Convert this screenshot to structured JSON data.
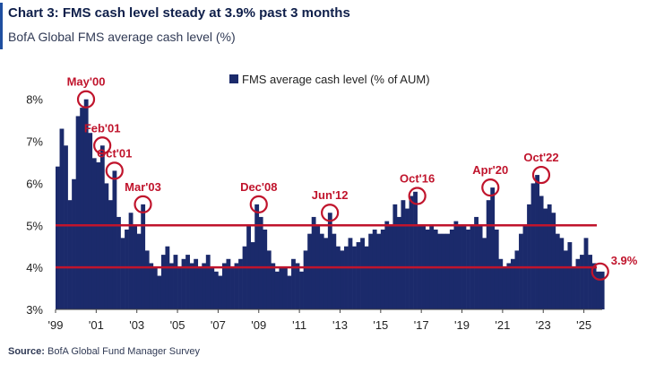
{
  "header": {
    "title": "Chart 3: FMS cash level steady at 3.9% past 3 months",
    "subtitle": "BofA Global FMS average cash level (%)"
  },
  "footer": {
    "source_label": "Source:",
    "source_text": "BofA Global Fund Manager Survey"
  },
  "colors": {
    "bars": "#1b2a6b",
    "threshold_lines": "#c0142c",
    "annotations": "#c0142c",
    "accent": "#1f4fa0"
  },
  "chart_data": {
    "type": "bar",
    "legend": {
      "label": "FMS average cash level (% of AUM)",
      "placement": "top-center"
    },
    "ylim": [
      3,
      8.4
    ],
    "y_ticks": [
      3,
      4,
      5,
      6,
      7,
      8
    ],
    "y_tick_labels": [
      "3%",
      "4%",
      "5%",
      "6%",
      "7%",
      "8%"
    ],
    "x_range": [
      1999.0,
      2025.8
    ],
    "x_tick_labels": [
      "'99",
      "'01",
      "'03",
      "'05",
      "'07",
      "'09",
      "'11",
      "'13",
      "'15",
      "'17",
      "'19",
      "'21",
      "'23",
      "'25"
    ],
    "x_tick_years": [
      1999,
      2001,
      2003,
      2005,
      2007,
      2009,
      2011,
      2013,
      2015,
      2017,
      2019,
      2021,
      2023,
      2025
    ],
    "threshold_lines": [
      5.0,
      4.0
    ],
    "grid": false,
    "series": [
      {
        "name": "FMS average cash level (% of AUM)",
        "points": [
          [
            1999.0,
            6.4
          ],
          [
            1999.2,
            7.3
          ],
          [
            1999.4,
            6.9
          ],
          [
            1999.6,
            5.6
          ],
          [
            1999.8,
            6.1
          ],
          [
            2000.0,
            7.6
          ],
          [
            2000.2,
            7.8
          ],
          [
            2000.4,
            8.0
          ],
          [
            2000.6,
            7.2
          ],
          [
            2000.8,
            6.6
          ],
          [
            2001.0,
            6.5
          ],
          [
            2001.2,
            6.9
          ],
          [
            2001.4,
            6.0
          ],
          [
            2001.6,
            5.6
          ],
          [
            2001.8,
            6.3
          ],
          [
            2002.0,
            5.2
          ],
          [
            2002.2,
            4.7
          ],
          [
            2002.4,
            4.9
          ],
          [
            2002.6,
            5.3
          ],
          [
            2002.8,
            5.0
          ],
          [
            2003.0,
            4.8
          ],
          [
            2003.2,
            5.5
          ],
          [
            2003.4,
            4.4
          ],
          [
            2003.6,
            4.1
          ],
          [
            2003.8,
            4.0
          ],
          [
            2004.0,
            3.8
          ],
          [
            2004.2,
            4.3
          ],
          [
            2004.4,
            4.5
          ],
          [
            2004.6,
            4.1
          ],
          [
            2004.8,
            4.3
          ],
          [
            2005.0,
            4.0
          ],
          [
            2005.2,
            4.2
          ],
          [
            2005.4,
            4.3
          ],
          [
            2005.6,
            4.1
          ],
          [
            2005.8,
            4.2
          ],
          [
            2006.0,
            4.0
          ],
          [
            2006.2,
            4.1
          ],
          [
            2006.4,
            4.3
          ],
          [
            2006.6,
            4.0
          ],
          [
            2006.8,
            3.9
          ],
          [
            2007.0,
            3.8
          ],
          [
            2007.2,
            4.1
          ],
          [
            2007.4,
            4.2
          ],
          [
            2007.6,
            4.0
          ],
          [
            2007.8,
            4.1
          ],
          [
            2008.0,
            4.2
          ],
          [
            2008.2,
            4.5
          ],
          [
            2008.4,
            5.0
          ],
          [
            2008.6,
            4.6
          ],
          [
            2008.8,
            5.5
          ],
          [
            2009.0,
            5.2
          ],
          [
            2009.2,
            4.9
          ],
          [
            2009.4,
            4.4
          ],
          [
            2009.6,
            4.1
          ],
          [
            2009.8,
            3.9
          ],
          [
            2010.0,
            4.0
          ],
          [
            2010.2,
            4.0
          ],
          [
            2010.4,
            3.8
          ],
          [
            2010.6,
            4.2
          ],
          [
            2010.8,
            4.1
          ],
          [
            2011.0,
            3.9
          ],
          [
            2011.2,
            4.4
          ],
          [
            2011.4,
            4.8
          ],
          [
            2011.6,
            5.2
          ],
          [
            2011.8,
            5.0
          ],
          [
            2012.0,
            4.8
          ],
          [
            2012.2,
            4.7
          ],
          [
            2012.4,
            5.3
          ],
          [
            2012.6,
            4.8
          ],
          [
            2012.8,
            4.5
          ],
          [
            2013.0,
            4.4
          ],
          [
            2013.2,
            4.5
          ],
          [
            2013.4,
            4.7
          ],
          [
            2013.6,
            4.5
          ],
          [
            2013.8,
            4.6
          ],
          [
            2014.0,
            4.7
          ],
          [
            2014.2,
            4.5
          ],
          [
            2014.4,
            4.8
          ],
          [
            2014.6,
            4.9
          ],
          [
            2014.8,
            4.8
          ],
          [
            2015.0,
            4.9
          ],
          [
            2015.2,
            5.1
          ],
          [
            2015.4,
            5.0
          ],
          [
            2015.6,
            5.5
          ],
          [
            2015.8,
            5.2
          ],
          [
            2016.0,
            5.6
          ],
          [
            2016.2,
            5.4
          ],
          [
            2016.4,
            5.7
          ],
          [
            2016.6,
            5.8
          ],
          [
            2016.8,
            5.0
          ],
          [
            2017.0,
            5.0
          ],
          [
            2017.2,
            4.9
          ],
          [
            2017.4,
            5.0
          ],
          [
            2017.6,
            4.9
          ],
          [
            2017.8,
            4.8
          ],
          [
            2018.0,
            4.8
          ],
          [
            2018.2,
            4.8
          ],
          [
            2018.4,
            4.9
          ],
          [
            2018.6,
            5.1
          ],
          [
            2018.8,
            5.0
          ],
          [
            2019.0,
            5.0
          ],
          [
            2019.2,
            4.9
          ],
          [
            2019.4,
            5.0
          ],
          [
            2019.6,
            5.2
          ],
          [
            2019.8,
            5.0
          ],
          [
            2020.0,
            4.7
          ],
          [
            2020.2,
            5.6
          ],
          [
            2020.4,
            5.9
          ],
          [
            2020.6,
            4.9
          ],
          [
            2020.8,
            4.2
          ],
          [
            2021.0,
            4.0
          ],
          [
            2021.2,
            4.1
          ],
          [
            2021.4,
            4.2
          ],
          [
            2021.6,
            4.4
          ],
          [
            2021.8,
            4.8
          ],
          [
            2022.0,
            5.0
          ],
          [
            2022.2,
            5.5
          ],
          [
            2022.4,
            6.0
          ],
          [
            2022.6,
            6.2
          ],
          [
            2022.8,
            5.7
          ],
          [
            2023.0,
            5.4
          ],
          [
            2023.2,
            5.5
          ],
          [
            2023.4,
            5.3
          ],
          [
            2023.6,
            4.8
          ],
          [
            2023.8,
            4.7
          ],
          [
            2024.0,
            4.4
          ],
          [
            2024.2,
            4.6
          ],
          [
            2024.4,
            4.0
          ],
          [
            2024.6,
            4.2
          ],
          [
            2024.8,
            4.3
          ],
          [
            2025.0,
            4.7
          ],
          [
            2025.2,
            4.3
          ],
          [
            2025.4,
            4.1
          ],
          [
            2025.6,
            3.9
          ],
          [
            2025.8,
            3.9
          ]
        ]
      }
    ],
    "annotations": [
      {
        "label": "May'00",
        "x": 2000.4,
        "y": 8.0,
        "label_pos": "above"
      },
      {
        "label": "Feb'01",
        "x": 2001.2,
        "y": 6.9,
        "label_pos": "above"
      },
      {
        "label": "Oct'01",
        "x": 2001.8,
        "y": 6.3,
        "label_pos": "above"
      },
      {
        "label": "Mar'03",
        "x": 2003.2,
        "y": 5.5,
        "label_pos": "above"
      },
      {
        "label": "Dec'08",
        "x": 2008.9,
        "y": 5.5,
        "label_pos": "above"
      },
      {
        "label": "Jun'12",
        "x": 2012.4,
        "y": 5.3,
        "label_pos": "above"
      },
      {
        "label": "Oct'16",
        "x": 2016.7,
        "y": 5.7,
        "label_pos": "above"
      },
      {
        "label": "Apr'20",
        "x": 2020.3,
        "y": 5.9,
        "label_pos": "above"
      },
      {
        "label": "Oct'22",
        "x": 2022.8,
        "y": 6.2,
        "label_pos": "above"
      },
      {
        "label": "3.9%",
        "x": 2025.7,
        "y": 3.9,
        "label_pos": "right"
      }
    ]
  }
}
